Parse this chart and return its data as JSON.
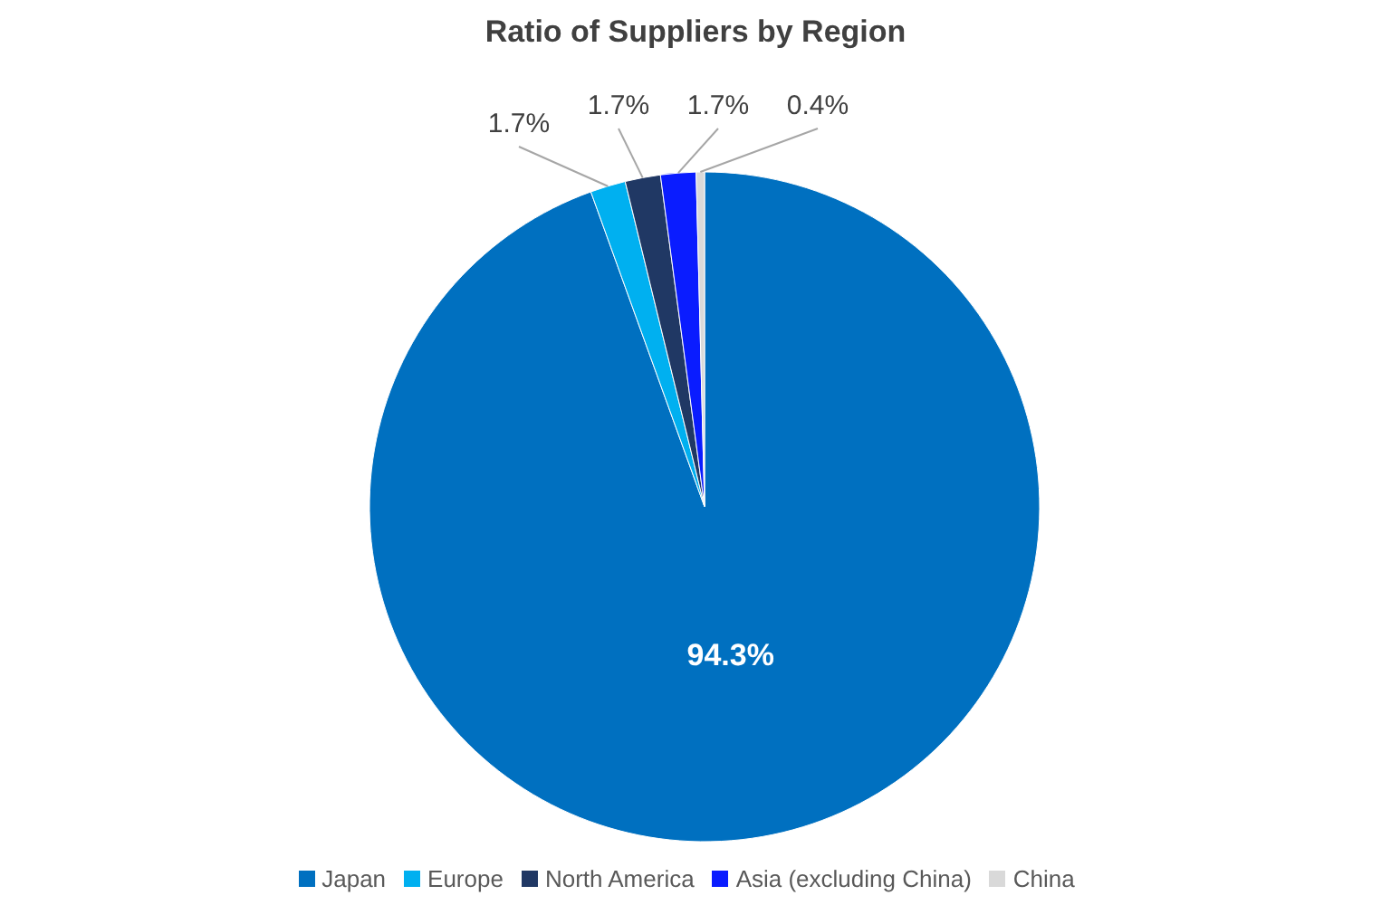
{
  "chart_data": {
    "type": "pie",
    "title": "Ratio of Suppliers by Region",
    "categories": [
      "Japan",
      "Europe",
      "North America",
      "Asia (excluding China)",
      "China"
    ],
    "values": [
      94.3,
      1.7,
      1.7,
      1.7,
      0.4
    ],
    "value_labels": [
      "94.3%",
      "1.7%",
      "1.7%",
      "1.7%",
      "0.4%"
    ],
    "colors": [
      "#0070c0",
      "#00b0f0",
      "#203864",
      "#0a1cff",
      "#d9d9d9"
    ],
    "legend": "bottom"
  }
}
